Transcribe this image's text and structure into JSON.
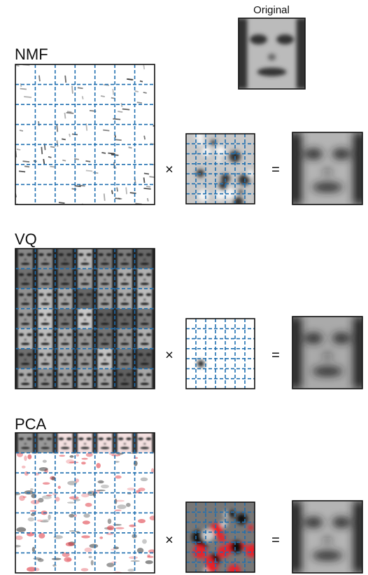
{
  "original_label": "Original",
  "rows": [
    {
      "label": "NMF",
      "times": "×",
      "equals": "="
    },
    {
      "label": "VQ",
      "times": "×",
      "equals": "="
    },
    {
      "label": "PCA",
      "times": "×",
      "equals": "="
    }
  ]
}
